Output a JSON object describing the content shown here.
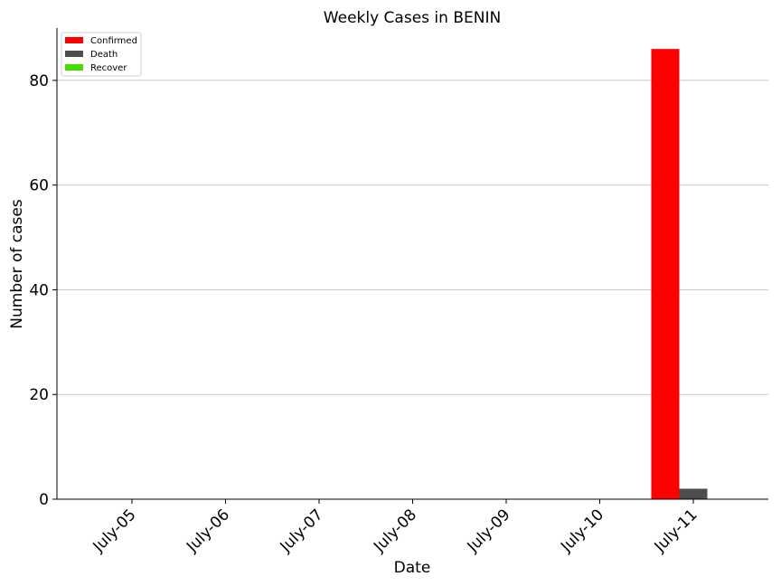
{
  "chart_data": {
    "type": "bar",
    "title": "Weekly Cases in BENIN",
    "xlabel": "Date",
    "ylabel": "Number of cases",
    "categories": [
      "July-05",
      "July-06",
      "July-07",
      "July-08",
      "July-09",
      "July-10",
      "July-11"
    ],
    "series": [
      {
        "name": "Confirmed",
        "color": "#ff0000",
        "values": [
          0,
          0,
          0,
          0,
          0,
          0,
          86
        ]
      },
      {
        "name": "Death",
        "color": "#4d4d4d",
        "values": [
          0,
          0,
          0,
          0,
          0,
          0,
          2
        ]
      },
      {
        "name": "Recover",
        "color": "#44dd00",
        "values": [
          0,
          0,
          0,
          0,
          0,
          0,
          0
        ]
      }
    ],
    "ylim": [
      0,
      90
    ],
    "yticks": [
      0,
      20,
      40,
      60,
      80
    ],
    "grid": "horizontal",
    "legend_position": "top-left"
  }
}
